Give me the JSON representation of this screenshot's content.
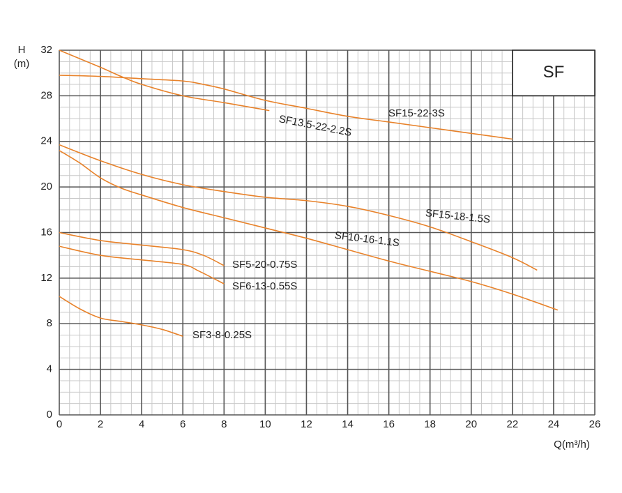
{
  "chart_data": {
    "type": "line",
    "title": "SF",
    "xlabel": "Q(m³/h)",
    "ylabel": [
      "H",
      "(m)"
    ],
    "xlim": [
      0,
      26
    ],
    "xticks": [
      0,
      2,
      4,
      6,
      8,
      10,
      12,
      14,
      16,
      18,
      20,
      22,
      24,
      26
    ],
    "ylim": [
      0,
      32
    ],
    "yticks": [
      0,
      4,
      8,
      12,
      16,
      20,
      24,
      28,
      32
    ],
    "grid": true,
    "minor_grid": true,
    "series": [
      {
        "name": "SF15-22-3S",
        "color": "#e8822a",
        "x": [
          0,
          2,
          4,
          6,
          7,
          8,
          10,
          12,
          14,
          16,
          18,
          20,
          22
        ],
        "values": [
          29.8,
          29.7,
          29.5,
          29.3,
          29.0,
          28.6,
          27.6,
          26.9,
          26.2,
          25.7,
          25.2,
          24.7,
          24.2
        ]
      },
      {
        "name": "SF13.5-22-2.2S",
        "color": "#e8822a",
        "x": [
          0,
          2,
          3,
          4,
          6,
          8,
          10.2
        ],
        "values": [
          32,
          30.5,
          29.7,
          29.0,
          28.0,
          27.4,
          26.7
        ]
      },
      {
        "name": "SF15-18-1.5S",
        "color": "#e8822a",
        "x": [
          0,
          2,
          4,
          6,
          8,
          10,
          12,
          14,
          16,
          18,
          20,
          22,
          23.2
        ],
        "values": [
          23.7,
          22.3,
          21.1,
          20.2,
          19.6,
          19.1,
          18.8,
          18.3,
          17.5,
          16.5,
          15.2,
          13.8,
          12.7
        ]
      },
      {
        "name": "SF10-16-1.1S",
        "color": "#e8822a",
        "x": [
          0,
          1,
          2,
          3,
          4,
          6,
          8,
          10,
          12,
          14,
          16,
          18,
          20,
          22,
          24.2
        ],
        "values": [
          23.2,
          22.1,
          20.8,
          19.9,
          19.3,
          18.2,
          17.3,
          16.4,
          15.5,
          14.5,
          13.5,
          12.6,
          11.7,
          10.6,
          9.2
        ]
      },
      {
        "name": "SF5-20-0.75S",
        "color": "#e8822a",
        "x": [
          0,
          2,
          4,
          6,
          7,
          8
        ],
        "values": [
          16,
          15.3,
          14.9,
          14.5,
          14.0,
          13.1
        ]
      },
      {
        "name": "SF6-13-0.55S",
        "color": "#e8822a",
        "x": [
          0,
          2,
          4,
          6,
          6.8,
          8
        ],
        "values": [
          14.8,
          14.0,
          13.6,
          13.2,
          12.6,
          11.5
        ]
      },
      {
        "name": "SF3-8-0.25S",
        "color": "#e8822a",
        "x": [
          0,
          1,
          2,
          3,
          4,
          5,
          6
        ],
        "values": [
          10.4,
          9.3,
          8.5,
          8.2,
          7.9,
          7.5,
          6.9
        ]
      }
    ]
  }
}
